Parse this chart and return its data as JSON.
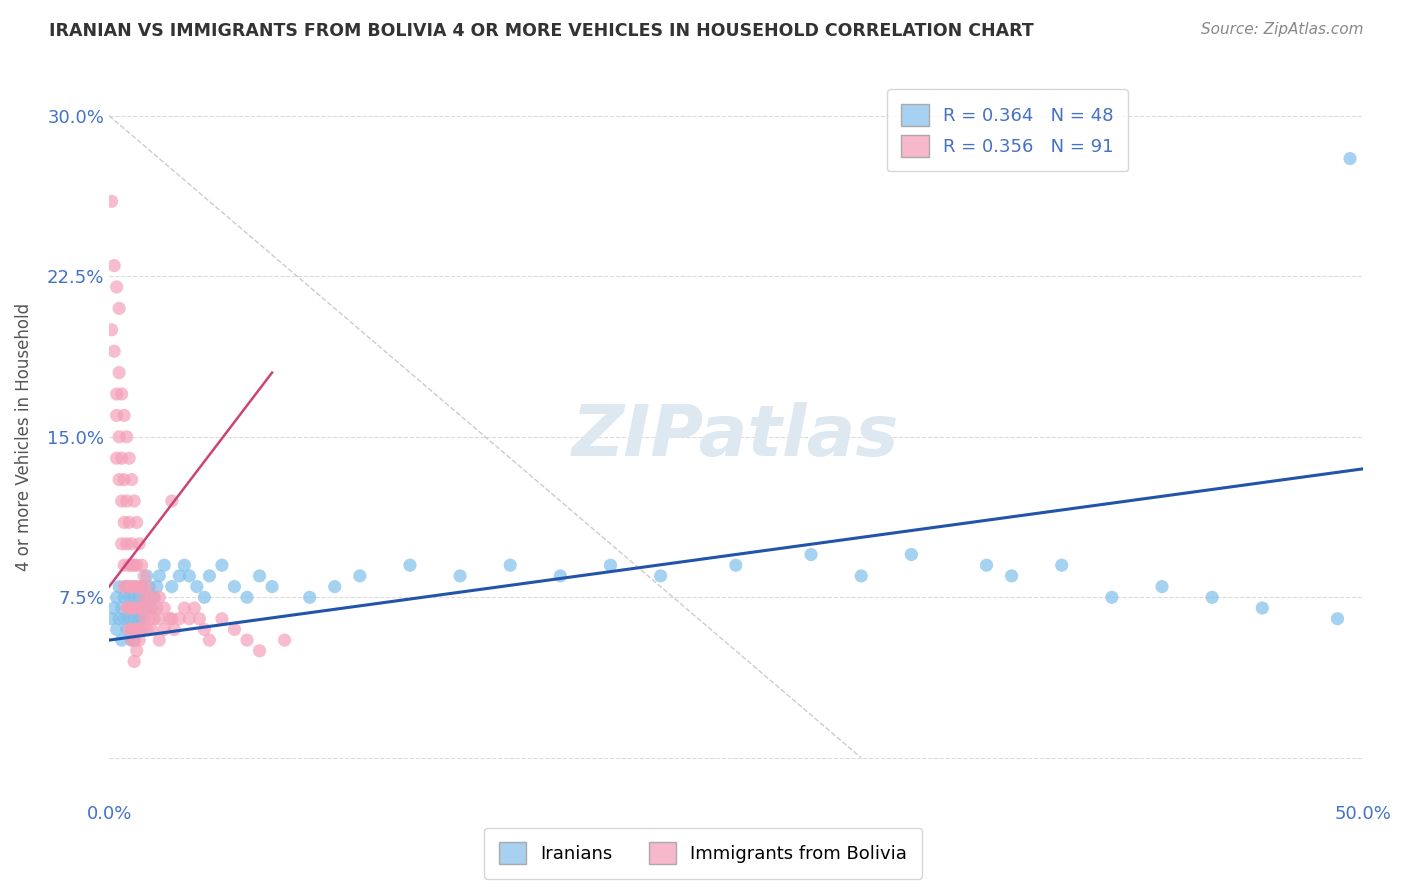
{
  "title": "IRANIAN VS IMMIGRANTS FROM BOLIVIA 4 OR MORE VEHICLES IN HOUSEHOLD CORRELATION CHART",
  "source": "Source: ZipAtlas.com",
  "ylabel": "4 or more Vehicles in Household",
  "xlim": [
    0.0,
    0.5
  ],
  "ylim": [
    -0.02,
    0.32
  ],
  "bg_color": "#ffffff",
  "grid_color": "#cccccc",
  "title_color": "#333333",
  "axis_label_color": "#555555",
  "tick_label_color": "#4472c4",
  "iranians_color": "#7fbfea",
  "bolivia_color": "#f4a0b8",
  "iranians_line_color": "#2255aa",
  "bolivia_line_color": "#cc4477",
  "ref_line_color": "#cccccc",
  "watermark_color": "#dde8f0",
  "iranians_scatter": [
    [
      0.001,
      0.065
    ],
    [
      0.002,
      0.07
    ],
    [
      0.003,
      0.075
    ],
    [
      0.003,
      0.06
    ],
    [
      0.004,
      0.08
    ],
    [
      0.004,
      0.065
    ],
    [
      0.005,
      0.07
    ],
    [
      0.005,
      0.055
    ],
    [
      0.006,
      0.075
    ],
    [
      0.006,
      0.065
    ],
    [
      0.007,
      0.08
    ],
    [
      0.007,
      0.06
    ],
    [
      0.008,
      0.075
    ],
    [
      0.008,
      0.065
    ],
    [
      0.009,
      0.07
    ],
    [
      0.009,
      0.055
    ],
    [
      0.01,
      0.075
    ],
    [
      0.01,
      0.065
    ],
    [
      0.01,
      0.055
    ],
    [
      0.011,
      0.07
    ],
    [
      0.011,
      0.06
    ],
    [
      0.012,
      0.075
    ],
    [
      0.012,
      0.065
    ],
    [
      0.013,
      0.08
    ],
    [
      0.013,
      0.065
    ],
    [
      0.014,
      0.075
    ],
    [
      0.015,
      0.085
    ],
    [
      0.015,
      0.07
    ],
    [
      0.016,
      0.08
    ],
    [
      0.017,
      0.07
    ],
    [
      0.018,
      0.075
    ],
    [
      0.019,
      0.08
    ],
    [
      0.02,
      0.085
    ],
    [
      0.022,
      0.09
    ],
    [
      0.025,
      0.08
    ],
    [
      0.028,
      0.085
    ],
    [
      0.03,
      0.09
    ],
    [
      0.032,
      0.085
    ],
    [
      0.035,
      0.08
    ],
    [
      0.038,
      0.075
    ],
    [
      0.04,
      0.085
    ],
    [
      0.045,
      0.09
    ],
    [
      0.05,
      0.08
    ],
    [
      0.055,
      0.075
    ],
    [
      0.06,
      0.085
    ],
    [
      0.065,
      0.08
    ],
    [
      0.08,
      0.075
    ],
    [
      0.09,
      0.08
    ],
    [
      0.1,
      0.085
    ],
    [
      0.12,
      0.09
    ],
    [
      0.14,
      0.085
    ],
    [
      0.16,
      0.09
    ],
    [
      0.18,
      0.085
    ],
    [
      0.2,
      0.09
    ],
    [
      0.22,
      0.085
    ],
    [
      0.25,
      0.09
    ],
    [
      0.28,
      0.095
    ],
    [
      0.3,
      0.085
    ],
    [
      0.32,
      0.095
    ],
    [
      0.35,
      0.09
    ],
    [
      0.36,
      0.085
    ],
    [
      0.38,
      0.09
    ],
    [
      0.4,
      0.075
    ],
    [
      0.42,
      0.08
    ],
    [
      0.44,
      0.075
    ],
    [
      0.46,
      0.07
    ],
    [
      0.49,
      0.065
    ],
    [
      0.495,
      0.28
    ]
  ],
  "bolivia_scatter": [
    [
      0.001,
      0.26
    ],
    [
      0.002,
      0.23
    ],
    [
      0.001,
      0.2
    ],
    [
      0.002,
      0.19
    ],
    [
      0.003,
      0.22
    ],
    [
      0.003,
      0.16
    ],
    [
      0.003,
      0.14
    ],
    [
      0.004,
      0.18
    ],
    [
      0.004,
      0.15
    ],
    [
      0.004,
      0.13
    ],
    [
      0.005,
      0.17
    ],
    [
      0.005,
      0.14
    ],
    [
      0.005,
      0.12
    ],
    [
      0.005,
      0.1
    ],
    [
      0.006,
      0.16
    ],
    [
      0.006,
      0.13
    ],
    [
      0.006,
      0.11
    ],
    [
      0.006,
      0.09
    ],
    [
      0.006,
      0.08
    ],
    [
      0.007,
      0.15
    ],
    [
      0.007,
      0.12
    ],
    [
      0.007,
      0.1
    ],
    [
      0.007,
      0.08
    ],
    [
      0.007,
      0.07
    ],
    [
      0.008,
      0.14
    ],
    [
      0.008,
      0.11
    ],
    [
      0.008,
      0.09
    ],
    [
      0.008,
      0.08
    ],
    [
      0.008,
      0.07
    ],
    [
      0.008,
      0.06
    ],
    [
      0.009,
      0.13
    ],
    [
      0.009,
      0.1
    ],
    [
      0.009,
      0.09
    ],
    [
      0.009,
      0.08
    ],
    [
      0.009,
      0.07
    ],
    [
      0.009,
      0.06
    ],
    [
      0.009,
      0.055
    ],
    [
      0.01,
      0.12
    ],
    [
      0.01,
      0.09
    ],
    [
      0.01,
      0.08
    ],
    [
      0.01,
      0.07
    ],
    [
      0.01,
      0.06
    ],
    [
      0.01,
      0.055
    ],
    [
      0.01,
      0.045
    ],
    [
      0.011,
      0.11
    ],
    [
      0.011,
      0.09
    ],
    [
      0.011,
      0.08
    ],
    [
      0.011,
      0.07
    ],
    [
      0.011,
      0.06
    ],
    [
      0.011,
      0.05
    ],
    [
      0.012,
      0.1
    ],
    [
      0.012,
      0.08
    ],
    [
      0.012,
      0.07
    ],
    [
      0.012,
      0.06
    ],
    [
      0.012,
      0.055
    ],
    [
      0.013,
      0.09
    ],
    [
      0.013,
      0.08
    ],
    [
      0.013,
      0.07
    ],
    [
      0.013,
      0.06
    ],
    [
      0.014,
      0.085
    ],
    [
      0.014,
      0.075
    ],
    [
      0.014,
      0.065
    ],
    [
      0.015,
      0.08
    ],
    [
      0.015,
      0.07
    ],
    [
      0.015,
      0.06
    ],
    [
      0.016,
      0.075
    ],
    [
      0.016,
      0.065
    ],
    [
      0.017,
      0.07
    ],
    [
      0.017,
      0.06
    ],
    [
      0.018,
      0.075
    ],
    [
      0.018,
      0.065
    ],
    [
      0.019,
      0.07
    ],
    [
      0.02,
      0.075
    ],
    [
      0.02,
      0.065
    ],
    [
      0.02,
      0.055
    ],
    [
      0.022,
      0.07
    ],
    [
      0.022,
      0.06
    ],
    [
      0.024,
      0.065
    ],
    [
      0.025,
      0.12
    ],
    [
      0.025,
      0.065
    ],
    [
      0.026,
      0.06
    ],
    [
      0.028,
      0.065
    ],
    [
      0.03,
      0.07
    ],
    [
      0.032,
      0.065
    ],
    [
      0.034,
      0.07
    ],
    [
      0.036,
      0.065
    ],
    [
      0.038,
      0.06
    ],
    [
      0.04,
      0.055
    ],
    [
      0.045,
      0.065
    ],
    [
      0.05,
      0.06
    ],
    [
      0.055,
      0.055
    ],
    [
      0.06,
      0.05
    ],
    [
      0.07,
      0.055
    ],
    [
      0.003,
      0.17
    ],
    [
      0.004,
      0.21
    ]
  ],
  "iranians_trend": [
    0.0,
    0.5,
    0.055,
    0.135
  ],
  "bolivia_trend": [
    0.0,
    0.065,
    0.08,
    0.18
  ],
  "ref_line": [
    0.0,
    0.3,
    0.3,
    0.0
  ]
}
